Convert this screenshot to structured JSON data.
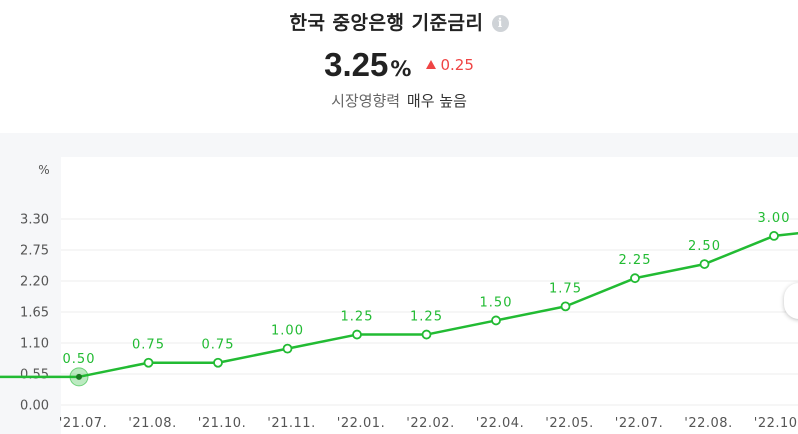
{
  "header": {
    "title": "한국 중앙은행 기준금리",
    "info_icon": "info-icon",
    "rate_value": "3.25",
    "rate_unit": "%",
    "change": "0.25",
    "change_direction": "up",
    "impact_label": "시장영향력",
    "impact_level": "매우 높음"
  },
  "colors": {
    "line": "#22bb33",
    "up": "#ef4444"
  },
  "chart_data": {
    "type": "line",
    "ylabel": "%",
    "ylim": [
      0,
      3.3
    ],
    "yticks": [
      "0.00",
      "0.55",
      "1.10",
      "1.65",
      "2.20",
      "2.75",
      "3.30"
    ],
    "grid": true,
    "categories": [
      "'21.07.",
      "'21.08.",
      "'21.10.",
      "'21.11.",
      "'22.01.",
      "'22.02.",
      "'22.04.",
      "'22.05.",
      "'22.07.",
      "'22.08.",
      "'22.10."
    ],
    "values": [
      0.5,
      0.75,
      0.75,
      1.0,
      1.25,
      1.25,
      1.5,
      1.75,
      2.25,
      2.5,
      3.0
    ],
    "data_labels": [
      "0.50",
      "0.75",
      "0.75",
      "1.00",
      "1.25",
      "1.25",
      "1.50",
      "1.75",
      "2.25",
      "2.50",
      "3.00"
    ],
    "latest_value": 3.25,
    "highlighted_index": 0
  }
}
